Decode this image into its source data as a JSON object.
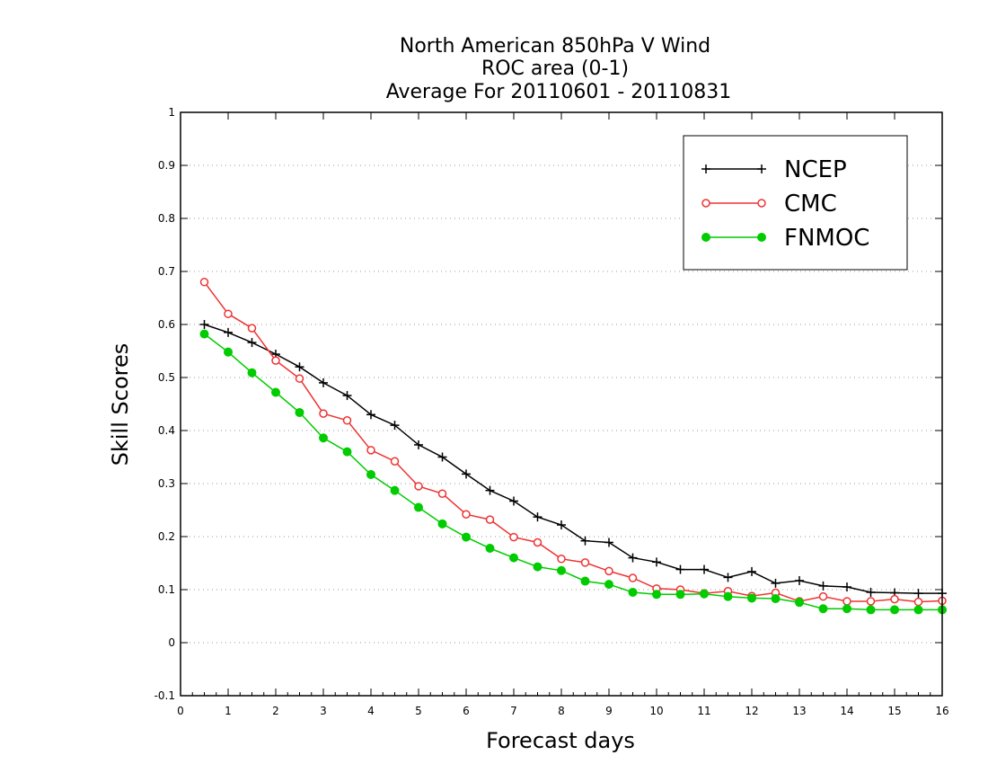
{
  "chart_data": {
    "type": "line",
    "title": [
      "North American 850hPa V Wind",
      "ROC area (0-1)",
      "Average For 20110601 - 20110831"
    ],
    "xlabel": "Forecast days",
    "ylabel": "Skill Scores",
    "xlim": [
      0,
      16
    ],
    "ylim": [
      -0.1,
      1
    ],
    "xticks": [
      "0",
      "1",
      "2",
      "3",
      "4",
      "5",
      "6",
      "7",
      "8",
      "9",
      "10",
      "11",
      "12",
      "13",
      "14",
      "15",
      "16"
    ],
    "yticks": [
      "-0.1",
      "0",
      "0.1",
      "0.2",
      "0.3",
      "0.4",
      "0.5",
      "0.6",
      "0.7",
      "0.8",
      "0.9",
      "1"
    ],
    "grid": "dotted horizontal",
    "legend_position": "top-right",
    "x": [
      0.5,
      1,
      1.5,
      2,
      2.5,
      3,
      3.5,
      4,
      4.5,
      5,
      5.5,
      6,
      6.5,
      7,
      7.5,
      8,
      8.5,
      9,
      9.5,
      10,
      10.5,
      11,
      11.5,
      12,
      12.5,
      13,
      13.5,
      14,
      14.5,
      15,
      15.5,
      16
    ],
    "series": [
      {
        "name": "NCEP",
        "color": "#000000",
        "marker": "plus",
        "values": [
          0.6,
          0.585,
          0.566,
          0.544,
          0.52,
          0.49,
          0.466,
          0.43,
          0.41,
          0.373,
          0.35,
          0.318,
          0.287,
          0.267,
          0.237,
          0.222,
          0.192,
          0.189,
          0.16,
          0.152,
          0.138,
          0.138,
          0.123,
          0.134,
          0.112,
          0.117,
          0.107,
          0.105,
          0.095,
          0.094,
          0.093,
          0.093
        ]
      },
      {
        "name": "CMC",
        "color": "#ee3333",
        "marker": "open-circle",
        "values": [
          0.68,
          0.62,
          0.593,
          0.532,
          0.498,
          0.432,
          0.419,
          0.363,
          0.342,
          0.295,
          0.281,
          0.242,
          0.232,
          0.199,
          0.189,
          0.158,
          0.151,
          0.135,
          0.122,
          0.102,
          0.1,
          0.093,
          0.097,
          0.088,
          0.094,
          0.078,
          0.087,
          0.078,
          0.078,
          0.082,
          0.077,
          0.079
        ]
      },
      {
        "name": "FNMOC",
        "color": "#00cc00",
        "marker": "filled-circle",
        "values": [
          0.582,
          0.548,
          0.509,
          0.472,
          0.434,
          0.386,
          0.36,
          0.317,
          0.287,
          0.255,
          0.224,
          0.199,
          0.178,
          0.16,
          0.143,
          0.136,
          0.116,
          0.11,
          0.095,
          0.091,
          0.091,
          0.092,
          0.087,
          0.084,
          0.083,
          0.076,
          0.064,
          0.064,
          0.062,
          0.062,
          0.062,
          0.062
        ]
      }
    ]
  }
}
